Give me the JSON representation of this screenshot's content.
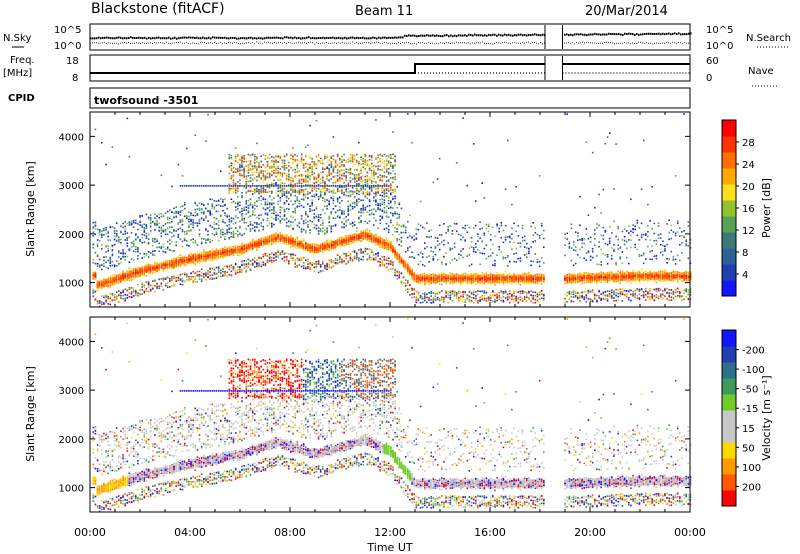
{
  "header": {
    "station": "Blackstone (fitACF)",
    "beam": "Beam 11",
    "date": "20/Mar/2014"
  },
  "side_labels": {
    "nsky": "N.Sky",
    "nsearch": "N.Search",
    "freq": "Freq.",
    "freq_unit": "[MHz]",
    "nave": "Nave",
    "cpid": "CPID"
  },
  "cpid_name": "twofsound -3501",
  "noise_ticks": {
    "top": "10^5",
    "bottom": "10^0"
  },
  "freq_ticks": [
    "18",
    "8"
  ],
  "nave_ticks": [
    "60",
    "0"
  ],
  "colors": {
    "power": [
      "#1414ff",
      "#1f3fae",
      "#2e5f95",
      "#3c7a7a",
      "#57a054",
      "#8fc42c",
      "#ffe01a",
      "#ffaa00",
      "#ff7000",
      "#ff3300",
      "#ff0000"
    ],
    "velocity": [
      "#1414ff",
      "#1f3fae",
      "#2e6f8c",
      "#3f9a5a",
      "#6fcc2a",
      "#c8c8c8",
      "#c8c8c8",
      "#ffd800",
      "#ff9a00",
      "#ff5a00",
      "#ff0000"
    ]
  },
  "chart_data": [
    {
      "type": "heatmap",
      "name": "Power",
      "xlabel": "Time UT",
      "ylabel": "Slant Range [km]",
      "x_ticks": [
        "00:00",
        "04:00",
        "08:00",
        "12:00",
        "16:00",
        "20:00",
        "00:00"
      ],
      "y_ticks": [
        "1000",
        "2000",
        "3000",
        "4000"
      ],
      "xlim": [
        0,
        24
      ],
      "ylim": [
        500,
        4500
      ],
      "colorbar": {
        "label": "Power [dB]",
        "ticks": [
          "4",
          "8",
          "12",
          "16",
          "20",
          "24",
          "28"
        ],
        "range": [
          0,
          30
        ]
      },
      "data_gap_hours": [
        18.2,
        18.9
      ],
      "main_echo_track_km": [
        [
          0.2,
          950
        ],
        [
          2,
          1250
        ],
        [
          4,
          1500
        ],
        [
          6,
          1700
        ],
        [
          7.5,
          1950
        ],
        [
          9,
          1700
        ],
        [
          11,
          2000
        ],
        [
          12,
          1750
        ],
        [
          13,
          1100
        ],
        [
          16,
          1100
        ],
        [
          18,
          1100
        ],
        [
          19,
          1100
        ],
        [
          22,
          1150
        ],
        [
          24,
          1150
        ]
      ]
    },
    {
      "type": "heatmap",
      "name": "Velocity",
      "xlabel": "Time UT",
      "ylabel": "Slant Range [km]",
      "x_ticks": [
        "00:00",
        "04:00",
        "08:00",
        "12:00",
        "16:00",
        "20:00",
        "00:00"
      ],
      "y_ticks": [
        "1000",
        "2000",
        "3000",
        "4000"
      ],
      "xlim": [
        0,
        24
      ],
      "ylim": [
        500,
        4500
      ],
      "colorbar": {
        "label": "Velocity [m s⁻¹]",
        "ticks": [
          "200",
          "100",
          "50",
          "15",
          "-15",
          "-50",
          "-100",
          "-200"
        ],
        "range": [
          -250,
          250
        ]
      },
      "data_gap_hours": [
        18.2,
        18.9
      ]
    }
  ]
}
